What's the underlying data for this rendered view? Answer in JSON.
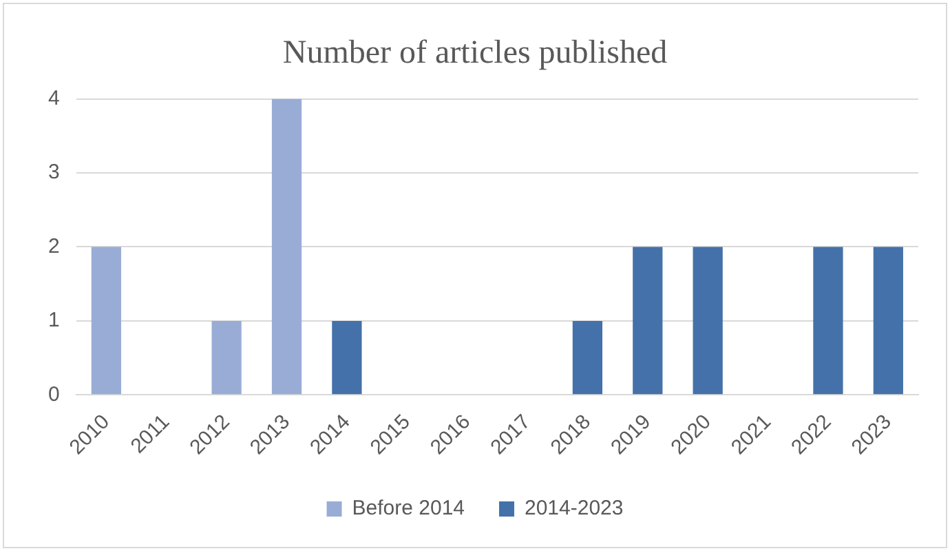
{
  "chart_data": {
    "type": "bar",
    "title": "Number of articles published",
    "categories": [
      "2010",
      "2011",
      "2012",
      "2013",
      "2014",
      "2015",
      "2016",
      "2017",
      "2018",
      "2019",
      "2020",
      "2021",
      "2022",
      "2023"
    ],
    "series": [
      {
        "name": "Before 2014",
        "color": "#98acd5",
        "values": [
          2,
          null,
          1,
          4,
          null,
          null,
          null,
          null,
          null,
          null,
          null,
          null,
          null,
          null
        ]
      },
      {
        "name": "2014-2023",
        "color": "#4471a9",
        "values": [
          null,
          null,
          null,
          null,
          1,
          null,
          null,
          null,
          1,
          2,
          2,
          null,
          2,
          2
        ]
      }
    ],
    "stacked": true,
    "ylim": [
      0,
      4
    ],
    "yticks": [
      0,
      1,
      2,
      3,
      4
    ],
    "grid": "y",
    "legend": "bottom"
  }
}
